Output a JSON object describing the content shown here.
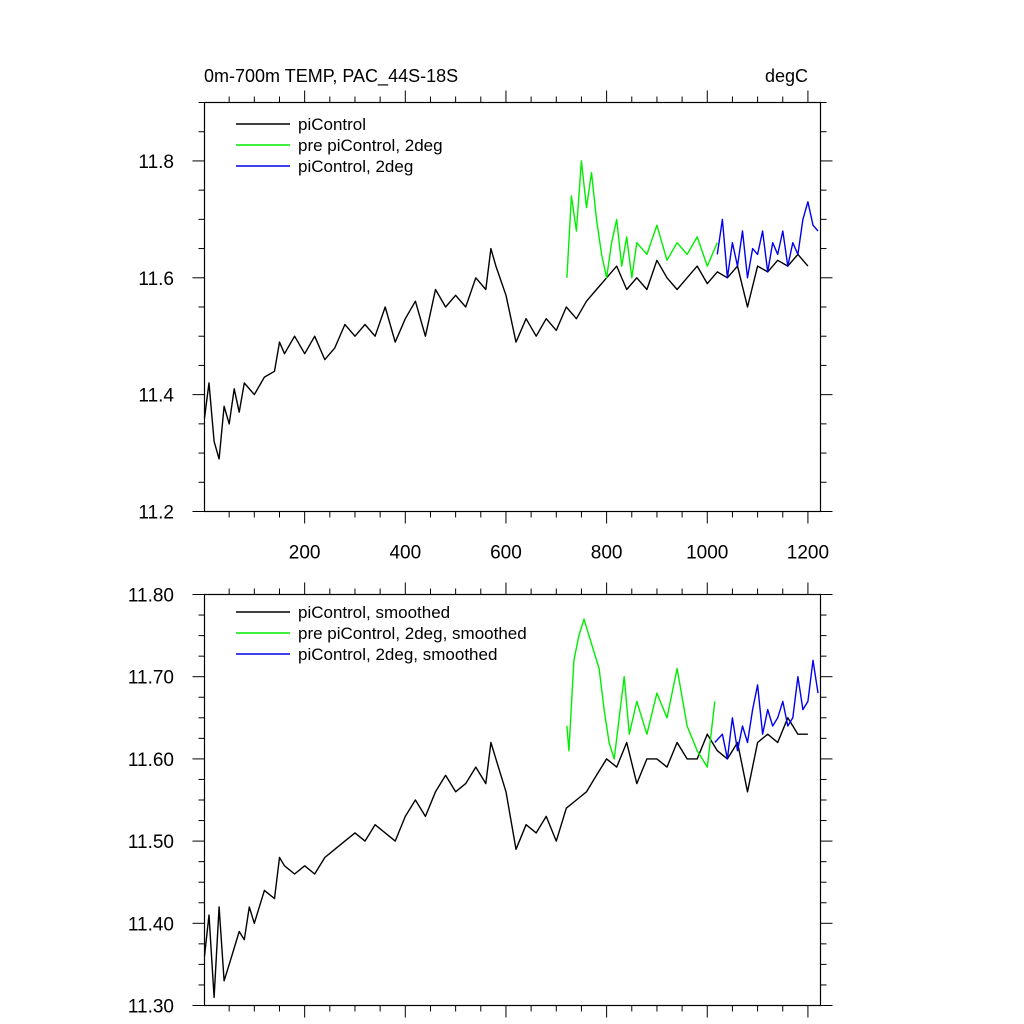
{
  "chart_data": [
    {
      "type": "line",
      "title": "0m-700m TEMP, PAC_44S-18S",
      "units": "degC",
      "xlim": [
        1,
        1225
      ],
      "ylim": [
        11.2,
        11.9
      ],
      "xticks_major": [
        200,
        400,
        600,
        800,
        1000,
        1200
      ],
      "xtick_labels": [
        "200",
        "400",
        "600",
        "800",
        "1000",
        "1200"
      ],
      "yticks_major": [
        11.2,
        11.4,
        11.6,
        11.8
      ],
      "ytick_labels": [
        "11.2",
        "11.4",
        "11.6",
        "11.8"
      ],
      "legend_position": "top-left",
      "grid": false,
      "series": [
        {
          "name": "piControl",
          "color": "#000000",
          "x": [
            1,
            10,
            20,
            30,
            40,
            50,
            60,
            70,
            80,
            100,
            120,
            140,
            150,
            160,
            180,
            200,
            220,
            240,
            260,
            280,
            300,
            320,
            340,
            360,
            380,
            400,
            420,
            440,
            460,
            480,
            500,
            520,
            540,
            560,
            570,
            580,
            600,
            620,
            640,
            660,
            680,
            700,
            720,
            740,
            760,
            780,
            800,
            820,
            840,
            860,
            880,
            900,
            920,
            940,
            960,
            980,
            1000,
            1020,
            1040,
            1060,
            1080,
            1100,
            1120,
            1140,
            1160,
            1180,
            1200
          ],
          "y": [
            11.36,
            11.42,
            11.32,
            11.29,
            11.38,
            11.35,
            11.41,
            11.37,
            11.42,
            11.4,
            11.43,
            11.44,
            11.49,
            11.47,
            11.5,
            11.47,
            11.5,
            11.46,
            11.48,
            11.52,
            11.5,
            11.52,
            11.5,
            11.55,
            11.49,
            11.53,
            11.56,
            11.5,
            11.58,
            11.55,
            11.57,
            11.55,
            11.6,
            11.58,
            11.65,
            11.62,
            11.57,
            11.49,
            11.53,
            11.5,
            11.53,
            11.51,
            11.55,
            11.53,
            11.56,
            11.58,
            11.6,
            11.62,
            11.58,
            11.6,
            11.58,
            11.63,
            11.6,
            11.58,
            11.6,
            11.62,
            11.59,
            11.61,
            11.6,
            11.62,
            11.55,
            11.62,
            11.61,
            11.63,
            11.62,
            11.64,
            11.62
          ]
        },
        {
          "name": "pre piControl, 2deg",
          "color": "#00ee00",
          "x": [
            721,
            730,
            740,
            750,
            760,
            770,
            780,
            790,
            800,
            810,
            820,
            830,
            840,
            850,
            860,
            880,
            900,
            920,
            940,
            960,
            980,
            1000,
            1020
          ],
          "y": [
            11.6,
            11.74,
            11.68,
            11.8,
            11.72,
            11.78,
            11.7,
            11.64,
            11.6,
            11.66,
            11.7,
            11.62,
            11.67,
            11.6,
            11.66,
            11.64,
            11.69,
            11.63,
            11.66,
            11.64,
            11.67,
            11.62,
            11.66
          ]
        },
        {
          "name": "piControl, 2deg",
          "color": "#0000ee",
          "x": [
            1020,
            1030,
            1040,
            1050,
            1060,
            1070,
            1080,
            1090,
            1100,
            1110,
            1120,
            1130,
            1140,
            1150,
            1160,
            1170,
            1180,
            1190,
            1200,
            1210,
            1220
          ],
          "y": [
            11.64,
            11.7,
            11.6,
            11.66,
            11.62,
            11.68,
            11.6,
            11.65,
            11.64,
            11.68,
            11.61,
            11.66,
            11.64,
            11.68,
            11.62,
            11.66,
            11.64,
            11.7,
            11.73,
            11.69,
            11.68
          ]
        }
      ]
    },
    {
      "type": "line",
      "xlim": [
        1,
        1225
      ],
      "ylim": [
        11.3,
        11.8
      ],
      "xticks_major": [
        200,
        400,
        600,
        800,
        1000,
        1200
      ],
      "yticks_major": [
        11.3,
        11.4,
        11.5,
        11.6,
        11.7,
        11.8
      ],
      "ytick_labels": [
        "11.30",
        "11.40",
        "11.50",
        "11.60",
        "11.70",
        "11.80"
      ],
      "legend_position": "top-left",
      "grid": false,
      "series": [
        {
          "name": "piControl, smoothed",
          "color": "#000000",
          "x": [
            1,
            10,
            20,
            30,
            40,
            50,
            60,
            70,
            80,
            90,
            100,
            120,
            140,
            150,
            160,
            180,
            200,
            220,
            240,
            260,
            280,
            300,
            320,
            340,
            360,
            380,
            400,
            420,
            440,
            460,
            480,
            500,
            520,
            540,
            560,
            570,
            580,
            600,
            620,
            640,
            660,
            680,
            700,
            720,
            740,
            760,
            780,
            800,
            820,
            840,
            860,
            880,
            900,
            920,
            940,
            960,
            980,
            1000,
            1020,
            1040,
            1060,
            1080,
            1100,
            1120,
            1140,
            1160,
            1180,
            1200
          ],
          "y": [
            11.36,
            11.41,
            11.31,
            11.42,
            11.33,
            11.35,
            11.37,
            11.39,
            11.38,
            11.42,
            11.4,
            11.44,
            11.43,
            11.48,
            11.47,
            11.46,
            11.47,
            11.46,
            11.48,
            11.49,
            11.5,
            11.51,
            11.5,
            11.52,
            11.51,
            11.5,
            11.53,
            11.55,
            11.53,
            11.56,
            11.58,
            11.56,
            11.57,
            11.59,
            11.57,
            11.62,
            11.6,
            11.56,
            11.49,
            11.52,
            11.51,
            11.53,
            11.5,
            11.54,
            11.55,
            11.56,
            11.58,
            11.6,
            11.59,
            11.62,
            11.57,
            11.6,
            11.6,
            11.59,
            11.62,
            11.6,
            11.6,
            11.63,
            11.61,
            11.6,
            11.62,
            11.56,
            11.62,
            11.63,
            11.62,
            11.65,
            11.63,
            11.63
          ]
        },
        {
          "name": "pre piControl, 2deg, smoothed",
          "color": "#00ee00",
          "x": [
            721,
            725,
            735,
            745,
            755,
            765,
            775,
            785,
            795,
            805,
            815,
            825,
            835,
            845,
            860,
            880,
            900,
            920,
            940,
            960,
            980,
            1000,
            1015
          ],
          "y": [
            11.64,
            11.61,
            11.72,
            11.75,
            11.77,
            11.75,
            11.73,
            11.71,
            11.66,
            11.62,
            11.6,
            11.65,
            11.7,
            11.63,
            11.67,
            11.63,
            11.68,
            11.65,
            11.71,
            11.64,
            11.61,
            11.59,
            11.67
          ]
        },
        {
          "name": "piControl, 2deg, smoothed",
          "color": "#0000ee",
          "x": [
            1015,
            1030,
            1040,
            1050,
            1060,
            1070,
            1080,
            1090,
            1100,
            1110,
            1120,
            1130,
            1140,
            1150,
            1160,
            1170,
            1180,
            1190,
            1200,
            1210,
            1220
          ],
          "y": [
            11.62,
            11.63,
            11.6,
            11.65,
            11.61,
            11.64,
            11.62,
            11.66,
            11.69,
            11.63,
            11.66,
            11.64,
            11.65,
            11.67,
            11.64,
            11.65,
            11.7,
            11.66,
            11.67,
            11.72,
            11.68
          ]
        }
      ]
    }
  ]
}
